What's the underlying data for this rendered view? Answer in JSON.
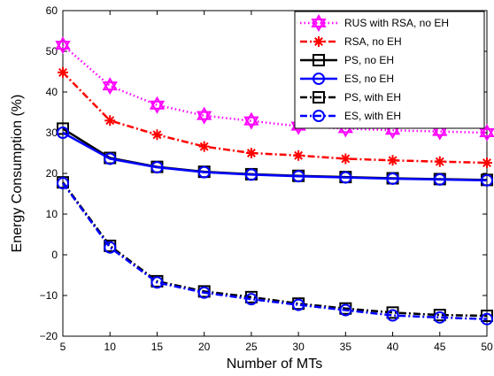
{
  "chart_data": {
    "type": "line",
    "title": "",
    "xlabel": "Number of MTs",
    "ylabel": "Energy Consumption (%)",
    "xlim": [
      5,
      50
    ],
    "ylim": [
      -20,
      60
    ],
    "x": [
      5,
      10,
      15,
      20,
      25,
      30,
      35,
      40,
      45,
      50
    ],
    "xticks": [
      "5",
      "10",
      "15",
      "20",
      "25",
      "30",
      "35",
      "40",
      "45",
      "50"
    ],
    "yticks": [
      "60",
      "50",
      "40",
      "30",
      "20",
      "10",
      "0",
      "−10",
      "−20"
    ],
    "grid": false,
    "legend_position": "top-right",
    "series": [
      {
        "name": "RUS with RSA, no EH",
        "color": "#ff00ff",
        "dash": "dotted",
        "marker": "hexagram",
        "values": [
          51.5,
          41.5,
          36.8,
          34.2,
          32.9,
          31.6,
          31.0,
          30.6,
          30.3,
          30.0
        ]
      },
      {
        "name": "RSA, no EH",
        "color": "#ff0000",
        "dash": "dashdot",
        "marker": "asterisk",
        "values": [
          44.8,
          33.0,
          29.5,
          26.6,
          25.0,
          24.4,
          23.6,
          23.2,
          22.9,
          22.6
        ]
      },
      {
        "name": "PS, no EH",
        "color": "#000000",
        "dash": "solid",
        "marker": "square",
        "values": [
          31.0,
          23.8,
          21.6,
          20.4,
          19.8,
          19.4,
          19.1,
          18.8,
          18.6,
          18.4
        ]
      },
      {
        "name": "ES, no EH",
        "color": "#0000ff",
        "dash": "solid",
        "marker": "circle",
        "values": [
          30.0,
          23.6,
          21.5,
          20.3,
          19.7,
          19.3,
          19.0,
          18.7,
          18.5,
          18.3
        ]
      },
      {
        "name": "PS, with EH",
        "color": "#000000",
        "dash": "dashdot",
        "marker": "square",
        "values": [
          17.8,
          2.2,
          -6.5,
          -9.0,
          -10.4,
          -12.0,
          -13.2,
          -14.2,
          -14.8,
          -15.0
        ]
      },
      {
        "name": "ES, with EH",
        "color": "#0000ff",
        "dash": "dashdot",
        "marker": "circle",
        "values": [
          17.6,
          1.8,
          -6.8,
          -9.3,
          -10.9,
          -12.3,
          -13.6,
          -14.9,
          -15.4,
          -15.8
        ]
      }
    ]
  }
}
